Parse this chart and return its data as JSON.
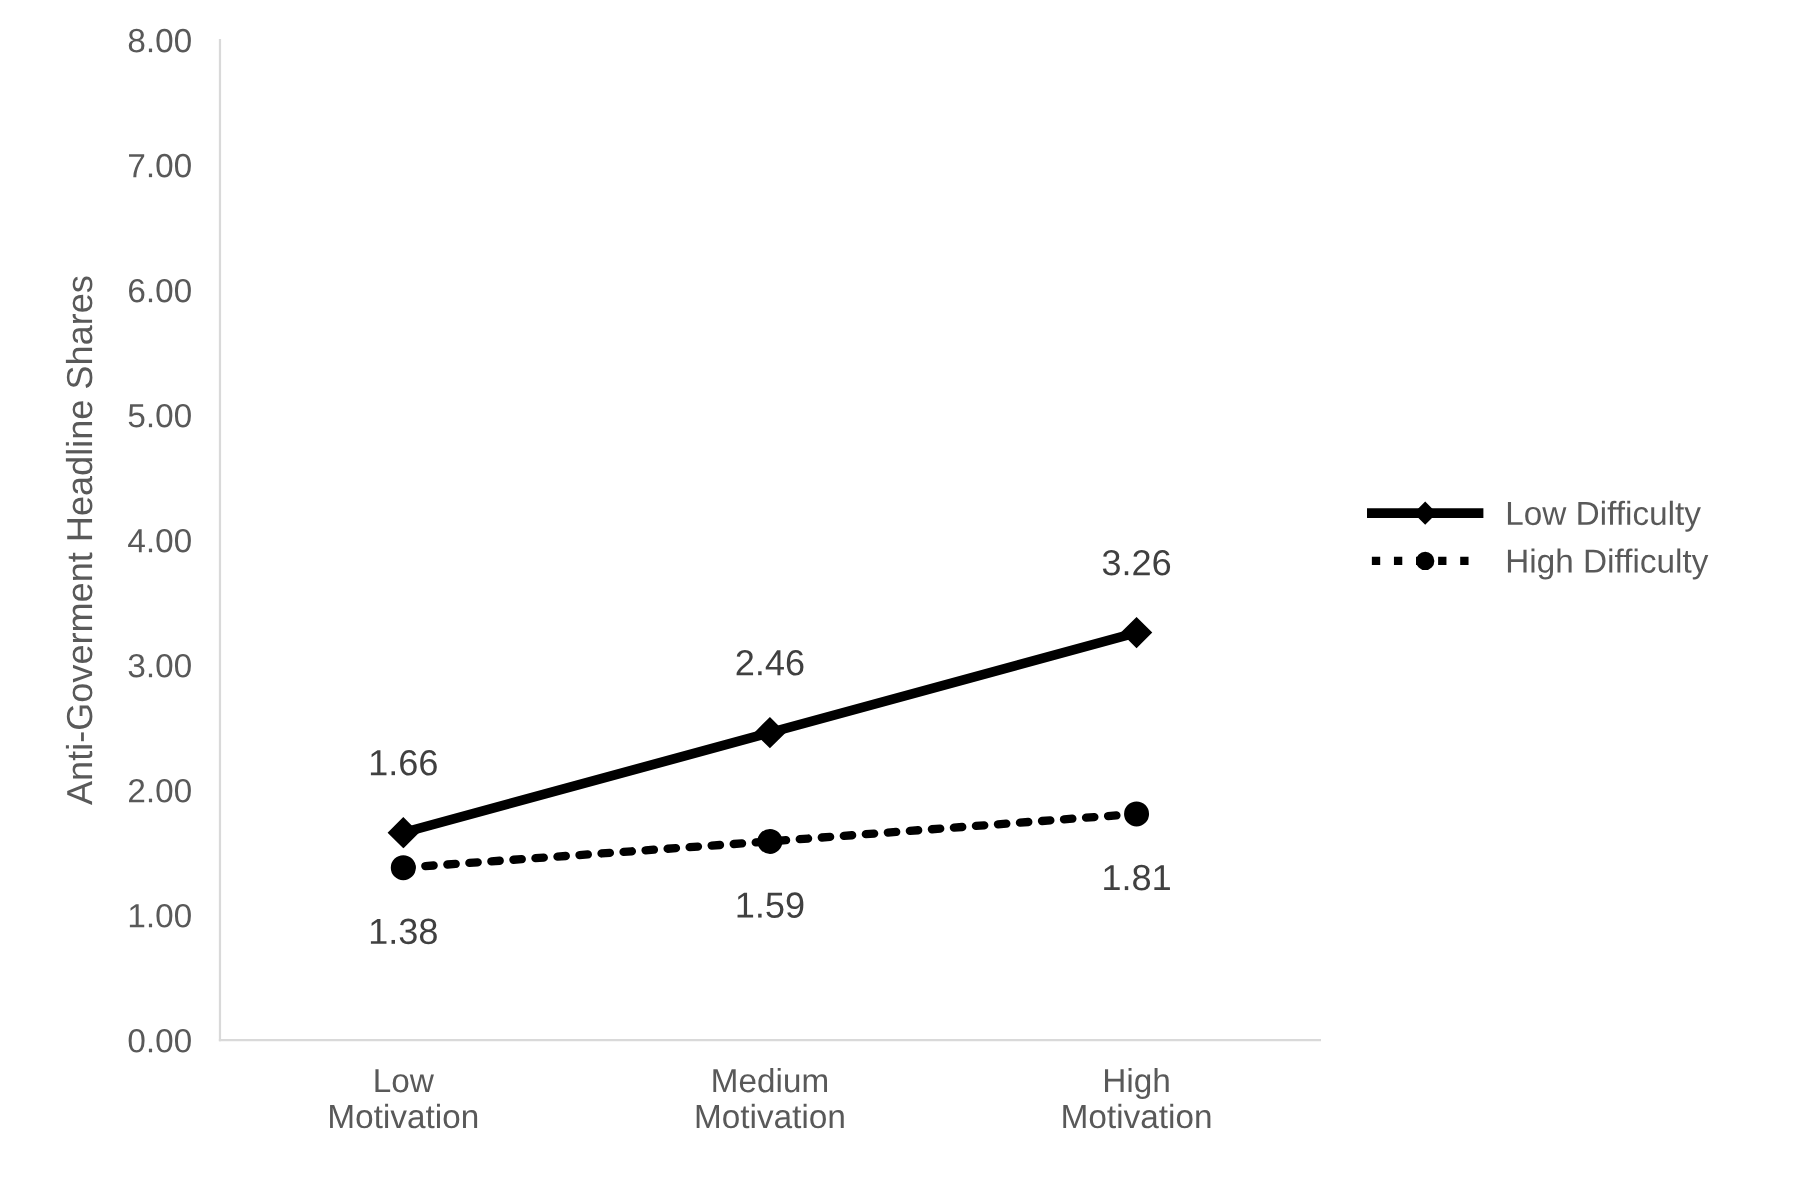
{
  "chart_data": {
    "type": "line",
    "ylabel": "Anti-Goverment Headline Shares",
    "categories": [
      "Low\nMotivation",
      "Medium\nMotivation",
      "High\nMotivation"
    ],
    "series": [
      {
        "name": "Low Difficulty",
        "color": "#000000",
        "values": [
          1.66,
          2.46,
          3.26
        ],
        "marker": "diamond",
        "line_style": "solid"
      },
      {
        "name": "High Difficulty",
        "color": "#000000",
        "values": [
          1.38,
          1.59,
          1.81
        ],
        "marker": "circle",
        "line_style": "dotted"
      }
    ],
    "ylim": [
      0,
      8
    ],
    "yticks": [
      {
        "value": 0,
        "label": "0.00"
      },
      {
        "value": 1,
        "label": "1.00"
      },
      {
        "value": 2,
        "label": "2.00"
      },
      {
        "value": 3,
        "label": "3.00"
      },
      {
        "value": 4,
        "label": "4.00"
      },
      {
        "value": 5,
        "label": "5.00"
      },
      {
        "value": 6,
        "label": "6.00"
      },
      {
        "value": 7,
        "label": "7.00"
      },
      {
        "value": 8,
        "label": "8.00"
      }
    ],
    "grid": false,
    "legend": "right",
    "data_labels": true
  }
}
